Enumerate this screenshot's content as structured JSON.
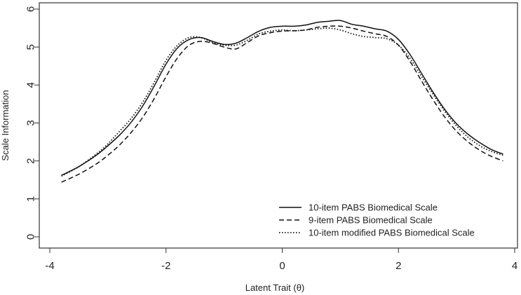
{
  "chart_data": {
    "type": "line",
    "title": "",
    "xlabel": "Latent Trait (θ)",
    "ylabel": "Scale Information",
    "xlim": [
      -4,
      4
    ],
    "ylim": [
      0,
      6
    ],
    "xticks": [
      -4,
      -2,
      0,
      2,
      4
    ],
    "yticks": [
      0,
      1,
      2,
      3,
      4,
      5,
      6
    ],
    "xtick_labels": [
      "-4",
      "-2",
      "0",
      "2",
      "4"
    ],
    "ytick_labels": [
      "0",
      "1",
      "2",
      "3",
      "4",
      "5",
      "6"
    ],
    "grid": false,
    "legend_position": "bottom-right",
    "x": [
      -3.8,
      -3.5,
      -3.2,
      -3.0,
      -2.8,
      -2.6,
      -2.4,
      -2.2,
      -2.0,
      -1.8,
      -1.6,
      -1.4,
      -1.2,
      -1.0,
      -0.8,
      -0.6,
      -0.4,
      -0.2,
      0.0,
      0.2,
      0.4,
      0.6,
      0.8,
      1.0,
      1.2,
      1.4,
      1.6,
      1.8,
      2.0,
      2.2,
      2.4,
      2.6,
      2.8,
      3.0,
      3.2,
      3.4,
      3.6,
      3.8
    ],
    "series": [
      {
        "name": "10-item PABS Biomedical Scale",
        "style": "solid",
        "values": [
          1.62,
          1.85,
          2.15,
          2.4,
          2.68,
          3.02,
          3.45,
          3.98,
          4.55,
          4.98,
          5.2,
          5.25,
          5.15,
          5.07,
          5.1,
          5.25,
          5.42,
          5.52,
          5.55,
          5.55,
          5.58,
          5.65,
          5.68,
          5.7,
          5.6,
          5.55,
          5.48,
          5.42,
          5.2,
          4.8,
          4.3,
          3.8,
          3.35,
          2.98,
          2.7,
          2.48,
          2.3,
          2.18
        ]
      },
      {
        "name": "9-item PABS Biomedical Scale",
        "style": "dashed",
        "values": [
          1.44,
          1.65,
          1.92,
          2.15,
          2.42,
          2.75,
          3.15,
          3.65,
          4.22,
          4.72,
          5.05,
          5.15,
          5.1,
          5.0,
          4.95,
          5.12,
          5.3,
          5.38,
          5.42,
          5.43,
          5.45,
          5.52,
          5.55,
          5.55,
          5.5,
          5.42,
          5.35,
          5.28,
          5.05,
          4.62,
          4.1,
          3.6,
          3.15,
          2.78,
          2.5,
          2.28,
          2.12,
          2.0
        ]
      },
      {
        "name": "10-item modified PABS Biomedical Scale",
        "style": "dotted",
        "values": [
          1.6,
          1.85,
          2.18,
          2.45,
          2.78,
          3.12,
          3.55,
          4.08,
          4.65,
          5.05,
          5.25,
          5.25,
          5.12,
          5.05,
          5.05,
          5.18,
          5.35,
          5.42,
          5.45,
          5.43,
          5.45,
          5.48,
          5.5,
          5.45,
          5.35,
          5.28,
          5.25,
          5.22,
          5.05,
          4.7,
          4.22,
          3.75,
          3.3,
          2.92,
          2.62,
          2.4,
          2.25,
          2.15
        ]
      }
    ]
  }
}
